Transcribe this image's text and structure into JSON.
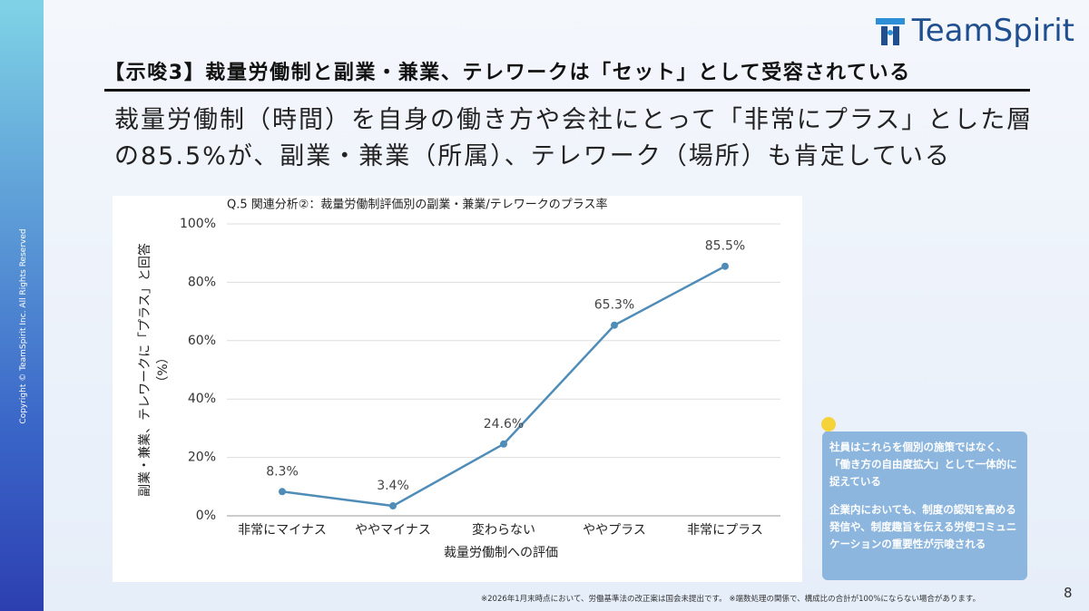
{
  "logo": "TeamSpirit",
  "heading": "【示唆3】裁量労働制と副業・兼業、テレワークは「セット」として受容されている",
  "lead": [
    "裁量労働制（時間）を自身の働き方や会社にとって「非常にプラス」とした層",
    "の85.5%が、副業・兼業（所属）、テレワーク（場所）も肯定している"
  ],
  "copyright": "Copyright © TeamSpirit Inc. All Rights Reserved",
  "callout": [
    "社員はこれらを個別の施策ではなく、「働き方の自由度拡大」として一体的に捉えている",
    "企業内においても、制度の認知を高める発信や、制度趣旨を伝える労使コミュニケーションの重要性が示唆される"
  ],
  "footnote": "※2026年1月末時点において、労働基準法の改正案は国会未提出です。 ※端数処理の関係で、構成比の合計が100%にならない場合があります。",
  "page_number": 8,
  "chart_data": {
    "type": "line",
    "title": "Q.5 関連分析②：裁量労働制評価別の副業・兼業/テレワークのプラス率",
    "categories": [
      "非常にマイナス",
      "ややマイナス",
      "変わらない",
      "ややプラス",
      "非常にプラス"
    ],
    "values": [
      8.3,
      3.4,
      24.6,
      65.3,
      85.5
    ],
    "value_labels": [
      "8.3%",
      "3.4%",
      "24.6%",
      "65.3%",
      "85.5%"
    ],
    "color": "#4f8db8",
    "x_label": "裁量労働制への評価",
    "y_label": [
      "副業・兼業、テレワークに「プラス」と回答",
      "（%）"
    ],
    "ylim": [
      0,
      100
    ],
    "yticks": [
      {
        "value": 0,
        "label": "0%"
      },
      {
        "value": 20,
        "label": "20%"
      },
      {
        "value": 40,
        "label": "40%"
      },
      {
        "value": 60,
        "label": "60%"
      },
      {
        "value": 80,
        "label": "80%"
      },
      {
        "value": 100,
        "label": "100%"
      }
    ],
    "grid": true
  }
}
